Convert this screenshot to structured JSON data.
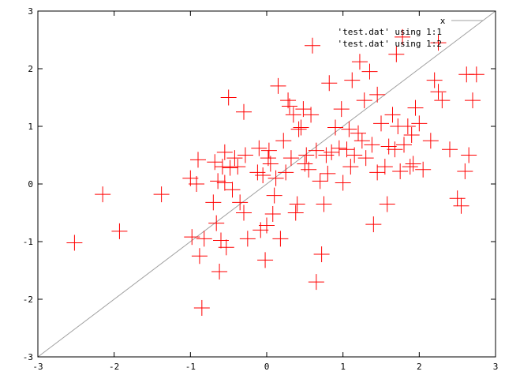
{
  "chart_data": {
    "type": "scatter",
    "xlim": [
      -3,
      3
    ],
    "ylim": [
      -3,
      3
    ],
    "x_ticks": [
      "-3",
      "-2",
      "-1",
      "0",
      "1",
      "2",
      "3"
    ],
    "y_ticks": [
      "-3",
      "-2",
      "-1",
      "0",
      "1",
      "2",
      "3"
    ],
    "grid": false,
    "legend_position": "top-right",
    "series": [
      {
        "name": "'test.dat' using 1:1",
        "kind": "line",
        "color": "#a0a0a0",
        "x": [
          -3,
          3
        ],
        "y": [
          -3,
          3
        ]
      },
      {
        "name": "'test.dat' using 1:2",
        "kind": "points",
        "marker": "+",
        "color": "#ff0000",
        "x": [
          -2.52,
          -2.15,
          -1.93,
          -1.38,
          -1.0,
          -0.98,
          -0.92,
          -0.9,
          -0.88,
          -0.85,
          -0.82,
          -0.7,
          -0.68,
          -0.66,
          -0.64,
          -0.62,
          -0.6,
          -0.58,
          -0.55,
          -0.53,
          -0.5,
          -0.48,
          -0.45,
          -0.42,
          -0.38,
          -0.35,
          -0.3,
          -0.28,
          -0.25,
          -0.12,
          -0.1,
          -0.08,
          -0.05,
          -0.02,
          0.0,
          0.02,
          0.03,
          0.05,
          0.08,
          0.1,
          0.12,
          0.15,
          0.18,
          0.25,
          0.28,
          0.3,
          0.32,
          0.35,
          0.38,
          0.4,
          0.42,
          0.45,
          0.48,
          0.5,
          0.52,
          0.55,
          0.58,
          0.6,
          0.65,
          0.7,
          0.72,
          0.75,
          0.78,
          0.8,
          0.82,
          0.85,
          0.9,
          0.95,
          0.98,
          1.0,
          1.05,
          1.08,
          1.1,
          1.12,
          1.15,
          1.2,
          1.22,
          1.25,
          1.28,
          1.3,
          1.35,
          1.38,
          1.4,
          1.45,
          1.5,
          1.55,
          1.58,
          1.6,
          1.65,
          1.68,
          1.7,
          1.72,
          1.75,
          1.78,
          1.8,
          1.85,
          1.88,
          1.9,
          1.92,
          1.95,
          2.0,
          2.05,
          2.15,
          2.2,
          2.25,
          2.3,
          2.4,
          2.5,
          2.55,
          2.6,
          2.62,
          2.65,
          2.7,
          2.75,
          -0.3,
          0.22,
          0.65,
          1.45,
          2.25,
          -0.55
        ],
        "y": [
          -1.02,
          -0.18,
          -0.82,
          -0.18,
          0.1,
          -0.92,
          0.0,
          0.42,
          -1.25,
          -2.15,
          -0.95,
          -0.32,
          0.38,
          -0.68,
          0.05,
          -1.52,
          -0.98,
          0.3,
          0.02,
          -1.1,
          1.5,
          0.28,
          -0.1,
          0.45,
          0.3,
          -0.32,
          -0.5,
          0.5,
          -0.95,
          0.2,
          0.62,
          -0.8,
          0.15,
          -1.32,
          -0.72,
          0.45,
          0.58,
          0.35,
          -0.52,
          -0.2,
          0.1,
          1.7,
          -0.95,
          0.2,
          1.45,
          1.35,
          0.45,
          1.2,
          -0.5,
          -0.35,
          0.95,
          0.98,
          1.3,
          0.35,
          0.5,
          0.25,
          1.2,
          2.4,
          -1.7,
          0.05,
          -1.22,
          -0.35,
          0.5,
          0.18,
          1.75,
          0.55,
          0.98,
          0.62,
          1.3,
          0.02,
          0.6,
          0.95,
          0.3,
          1.8,
          0.5,
          0.88,
          2.12,
          0.75,
          1.45,
          0.45,
          1.95,
          0.68,
          -0.7,
          0.2,
          1.05,
          0.3,
          -0.35,
          0.65,
          1.2,
          0.6,
          2.25,
          1.0,
          0.22,
          2.55,
          0.68,
          1.0,
          0.3,
          0.85,
          0.35,
          1.32,
          1.05,
          0.25,
          0.75,
          1.8,
          2.45,
          1.45,
          0.6,
          -0.25,
          -0.38,
          0.22,
          1.9,
          0.5,
          1.45,
          1.9,
          1.25,
          0.75,
          0.58,
          1.55,
          1.6,
          0.55
        ]
      }
    ]
  }
}
